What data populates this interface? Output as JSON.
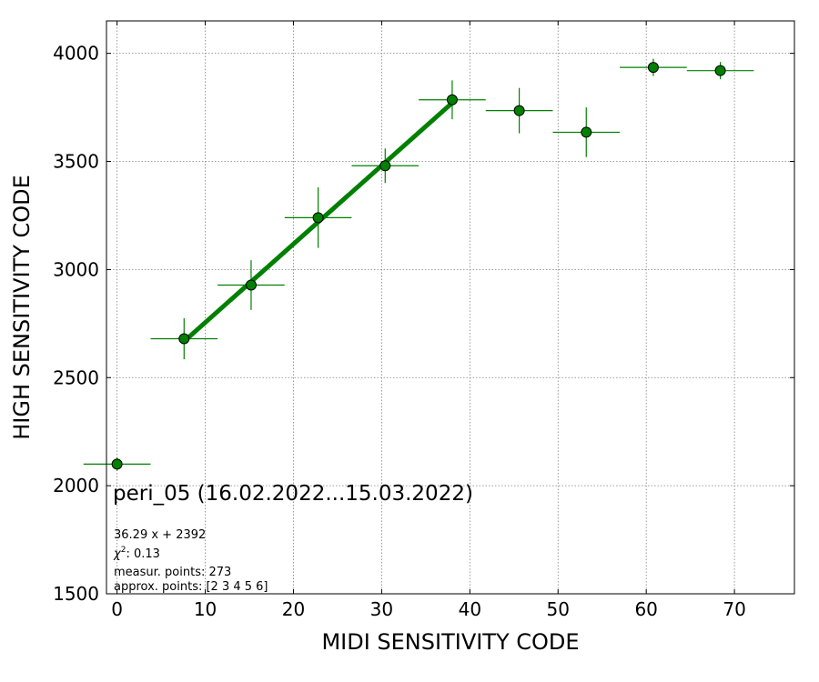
{
  "chart_data": {
    "type": "scatter",
    "xlabel": "MIDI SENSITIVITY CODE",
    "ylabel": "HIGH SENSITIVITY CODE",
    "xlim": [
      -1.2,
      76.8
    ],
    "ylim": [
      1500,
      4150
    ],
    "xticks": [
      0,
      10,
      20,
      30,
      40,
      50,
      60,
      70
    ],
    "yticks": [
      1500,
      2000,
      2500,
      3000,
      3500,
      4000
    ],
    "grid": true,
    "colors": {
      "series": "#008000",
      "marker_edge": "#000000",
      "grid": "#808080"
    },
    "points": [
      {
        "x": 0.0,
        "y": 2100,
        "xerr": 3.8,
        "yerr": 30
      },
      {
        "x": 7.6,
        "y": 2680,
        "xerr": 3.8,
        "yerr": 95
      },
      {
        "x": 15.2,
        "y": 2928,
        "xerr": 3.8,
        "yerr": 115
      },
      {
        "x": 22.8,
        "y": 3240,
        "xerr": 3.8,
        "yerr": 140
      },
      {
        "x": 30.4,
        "y": 3480,
        "xerr": 3.8,
        "yerr": 80
      },
      {
        "x": 38.0,
        "y": 3785,
        "xerr": 3.8,
        "yerr": 90
      },
      {
        "x": 45.6,
        "y": 3735,
        "xerr": 3.8,
        "yerr": 105
      },
      {
        "x": 53.2,
        "y": 3635,
        "xerr": 3.8,
        "yerr": 115
      },
      {
        "x": 60.8,
        "y": 3935,
        "xerr": 3.8,
        "yerr": 40
      },
      {
        "x": 68.4,
        "y": 3920,
        "xerr": 3.8,
        "yerr": 40
      }
    ],
    "fit": {
      "slope": 36.29,
      "intercept": 2392,
      "x_range": [
        7.6,
        38.0
      ]
    },
    "annotations": {
      "title": "peri_05 (16.02.2022...15.03.2022)",
      "equation": "36.29 x + 2392",
      "chi2_prefix": "χ",
      "chi2_sup": "2",
      "chi2_suffix": ": 0.13",
      "measur_points": "measur. points: 273",
      "approx_points": "approx. points: [2 3 4 5 6]"
    }
  }
}
